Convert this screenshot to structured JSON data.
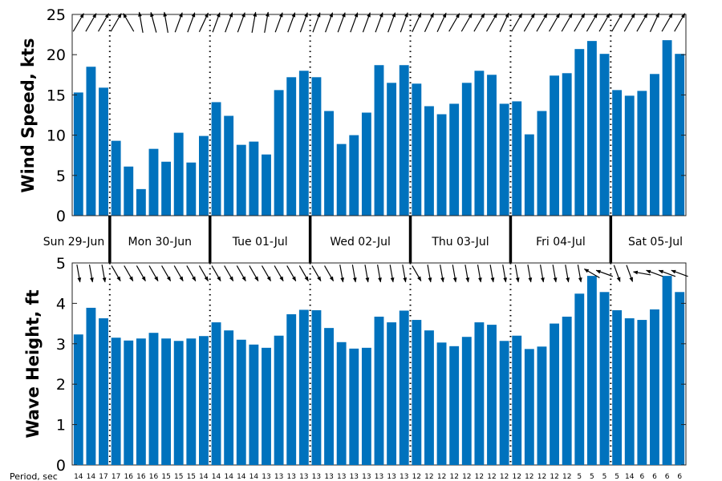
{
  "chart_data": [
    {
      "type": "bar",
      "ylabel": "Wind Speed, kts",
      "ylim": [
        0,
        25
      ],
      "yticks": [
        0,
        5,
        10,
        15,
        20,
        25
      ],
      "color": "#0072BD",
      "values": [
        15.3,
        18.5,
        15.9,
        9.3,
        6.1,
        3.3,
        8.3,
        6.7,
        10.3,
        6.6,
        9.9,
        14.1,
        12.4,
        8.8,
        9.2,
        7.6,
        15.6,
        17.2,
        18.0,
        17.2,
        13.0,
        8.9,
        10.0,
        12.8,
        18.7,
        16.5,
        18.7,
        16.4,
        13.6,
        12.6,
        13.9,
        16.5,
        18.0,
        17.5,
        13.9,
        14.2,
        10.1,
        13.0,
        17.4,
        17.7,
        20.7,
        21.7,
        20.1,
        15.6,
        14.9,
        15.5,
        17.6,
        21.8,
        20.1
      ],
      "direction_arrows": [
        60,
        60,
        60,
        60,
        120,
        100,
        105,
        100,
        70,
        70,
        65,
        70,
        70,
        70,
        80,
        80,
        70,
        70,
        70,
        70,
        70,
        70,
        70,
        70,
        70,
        70,
        70,
        65,
        65,
        65,
        60,
        60,
        60,
        60,
        65,
        60,
        60,
        60,
        60,
        60,
        60,
        60,
        60,
        60,
        60,
        60,
        65,
        60,
        60
      ]
    },
    {
      "type": "bar",
      "ylabel": "Wave Height, ft",
      "ylim": [
        0,
        5
      ],
      "yticks": [
        0,
        1,
        2,
        3,
        4,
        5
      ],
      "color": "#0072BD",
      "values": [
        3.23,
        3.89,
        3.63,
        3.15,
        3.08,
        3.13,
        3.27,
        3.13,
        3.07,
        3.13,
        3.19,
        3.53,
        3.33,
        3.1,
        2.98,
        2.9,
        3.2,
        3.73,
        3.84,
        3.83,
        3.39,
        3.04,
        2.88,
        2.9,
        3.67,
        3.53,
        3.82,
        3.59,
        3.33,
        3.03,
        2.94,
        3.17,
        3.53,
        3.47,
        3.07,
        3.2,
        2.87,
        2.93,
        3.5,
        3.67,
        4.24,
        4.68,
        4.28,
        3.83,
        3.63,
        3.59,
        3.85,
        4.68,
        4.28
      ],
      "direction_arrows": [
        -80,
        -80,
        -80,
        -60,
        -60,
        -60,
        -60,
        -60,
        -60,
        -60,
        -60,
        -60,
        -60,
        -60,
        -60,
        -60,
        -60,
        -60,
        -60,
        -60,
        -60,
        -80,
        -80,
        -80,
        -80,
        -80,
        -80,
        -60,
        -80,
        -80,
        -80,
        -80,
        -80,
        -80,
        -80,
        -80,
        -80,
        -80,
        -80,
        -80,
        -80,
        150,
        160,
        -70,
        -70,
        170,
        160,
        160,
        160
      ]
    }
  ],
  "days": [
    "Sun 29-Jun",
    "Mon 30-Jun",
    "Tue 01-Jul",
    "Wed 02-Jul",
    "Thu 03-Jul",
    "Fri 04-Jul",
    "Sat 05-Jul"
  ],
  "day_boundaries": [
    3,
    11,
    19,
    27,
    35,
    43
  ],
  "period_label": "Period, sec",
  "periods": [
    "14",
    "14",
    "17",
    "17",
    "16",
    "16",
    "16",
    "15",
    "15",
    "15",
    "14",
    "14",
    "14",
    "14",
    "14",
    "13",
    "13",
    "13",
    "13",
    "13",
    "13",
    "13",
    "13",
    "13",
    "13",
    "13",
    "13",
    "12",
    "12",
    "12",
    "12",
    "12",
    "12",
    "12",
    "12",
    "12",
    "12",
    "12",
    "12",
    "12",
    "5",
    "5",
    "5",
    "5",
    "14",
    "6",
    "6",
    "6",
    "6"
  ]
}
